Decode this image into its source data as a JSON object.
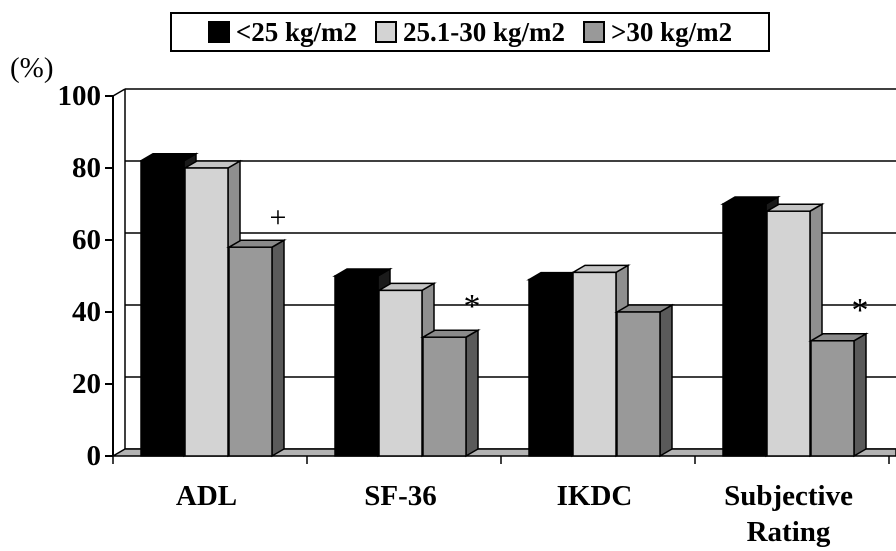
{
  "chart_data": {
    "type": "bar",
    "ylabel": "(%)",
    "ylim": [
      0,
      100
    ],
    "yticks": [
      0,
      20,
      40,
      60,
      80,
      100
    ],
    "grid": true,
    "legend_position": "top",
    "categories": [
      "ADL",
      "SF-36",
      "IKDC",
      "Subjective\nRating"
    ],
    "series": [
      {
        "name": "<25 kg/m2",
        "values": [
          82,
          50,
          49,
          70
        ],
        "color": "#000000"
      },
      {
        "name": "25.1-30 kg/m2",
        "values": [
          80,
          46,
          51,
          68
        ],
        "color": "#d3d3d3"
      },
      {
        "name": ">30 kg/m2",
        "values": [
          58,
          33,
          40,
          32
        ],
        "color": "#999999"
      }
    ],
    "annotations": [
      {
        "text": "+",
        "category": "ADL"
      },
      {
        "text": "*",
        "category": "SF-36"
      },
      {
        "text": "*",
        "category": "Subjective\nRating"
      }
    ]
  }
}
